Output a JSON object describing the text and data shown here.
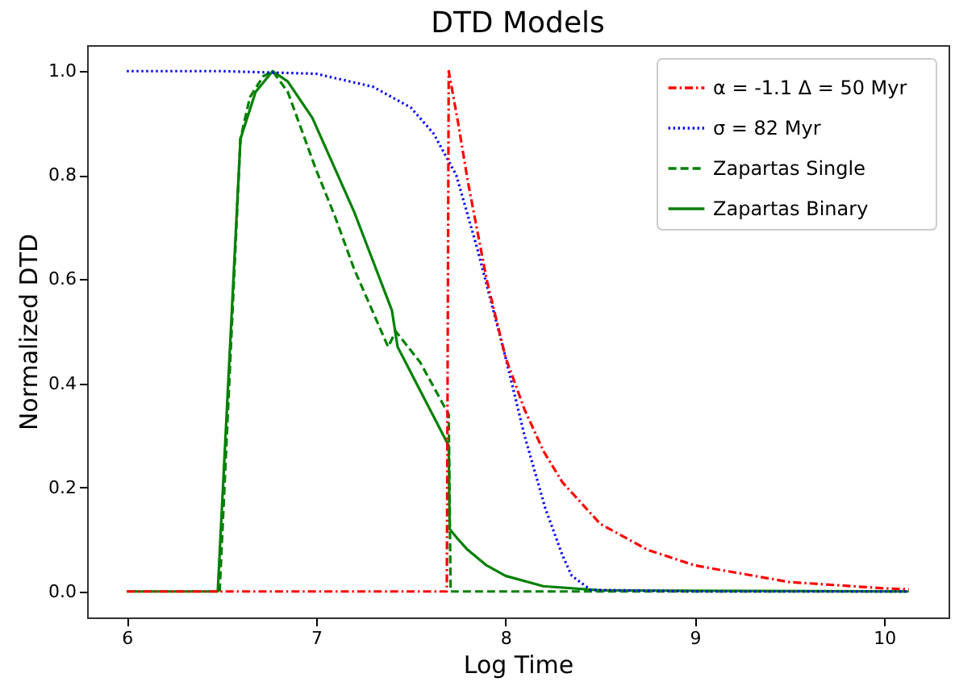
{
  "chart_data": {
    "type": "line",
    "title": "DTD Models",
    "xlabel": "Log Time",
    "ylabel": "Normalized DTD",
    "xlim": [
      5.79,
      10.34
    ],
    "ylim": [
      -0.05,
      1.05
    ],
    "xticks": [
      6,
      7,
      8,
      9,
      10
    ],
    "yticks": [
      {
        "value": 0,
        "label": "0.0"
      },
      {
        "value": 0.2,
        "label": "0.2"
      },
      {
        "value": 0.4,
        "label": "0.4"
      },
      {
        "value": 0.6,
        "label": "0.6"
      },
      {
        "value": 0.8,
        "label": "0.8"
      },
      {
        "value": 1,
        "label": "1.0"
      }
    ],
    "grid": false,
    "legend": "top right",
    "series": [
      {
        "name": "α = -1.1   Δ = 50  Myr",
        "color": "#ff0000",
        "line_style": "dashdot",
        "x": [
          6,
          7.69,
          7.7,
          7.75,
          7.8,
          7.9,
          8.0,
          8.1,
          8.2,
          8.3,
          8.5,
          8.75,
          9,
          9.5,
          10,
          10.13
        ],
        "values": [
          0,
          0,
          1,
          0.9,
          0.79,
          0.6,
          0.45,
          0.35,
          0.27,
          0.21,
          0.13,
          0.08,
          0.05,
          0.018,
          0.006,
          0.004
        ]
      },
      {
        "name": "σ = 82 Myr",
        "color": "#0000ff",
        "line_style": "dotted",
        "x": [
          6,
          6.5,
          7,
          7.3,
          7.5,
          7.62,
          7.74,
          7.85,
          8.0,
          8.1,
          8.21,
          8.3,
          8.35,
          8.45,
          9,
          10.13
        ],
        "values": [
          1,
          1,
          0.995,
          0.97,
          0.93,
          0.88,
          0.8,
          0.66,
          0.45,
          0.3,
          0.16,
          0.07,
          0.03,
          0.003,
          0,
          0
        ]
      },
      {
        "name": "Zapartas Single",
        "color": "#008000",
        "line_style": "dashed",
        "x": [
          6.49,
          6.6,
          6.65,
          6.72,
          6.77,
          6.85,
          7.0,
          7.1,
          7.2,
          7.38,
          7.42,
          7.55,
          7.7,
          7.71,
          10.13
        ],
        "values": [
          0,
          0.87,
          0.95,
          0.99,
          1.0,
          0.96,
          0.81,
          0.72,
          0.62,
          0.47,
          0.5,
          0.44,
          0.34,
          0,
          0
        ]
      },
      {
        "name": "Zapartas Binary",
        "color": "#008000",
        "line_style": "solid",
        "x": [
          6,
          6.48,
          6.6,
          6.68,
          6.77,
          6.85,
          6.98,
          7.2,
          7.4,
          7.43,
          7.7,
          7.705,
          7.75,
          7.8,
          7.9,
          8.0,
          8.2,
          8.5,
          10.13
        ],
        "values": [
          0,
          0,
          0.87,
          0.96,
          1.0,
          0.98,
          0.91,
          0.73,
          0.54,
          0.47,
          0.28,
          0.12,
          0.1,
          0.08,
          0.05,
          0.03,
          0.01,
          0.002,
          0
        ]
      }
    ]
  }
}
